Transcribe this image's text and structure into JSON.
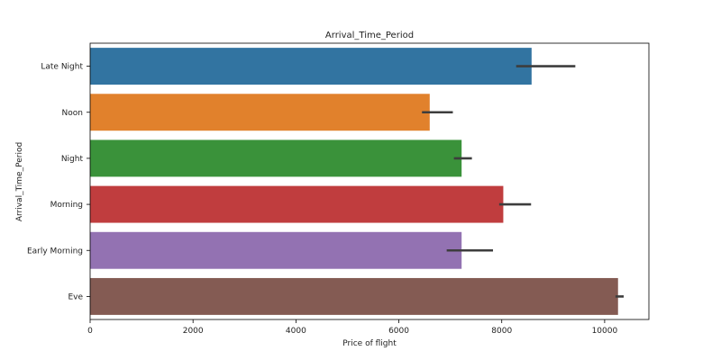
{
  "chart_data": {
    "type": "bar",
    "orientation": "horizontal",
    "title": "Arrival_Time_Period",
    "xlabel": "Price of flight",
    "ylabel": "Arrival_Time_Period",
    "xlim": [
      0,
      10860
    ],
    "xticks": [
      0,
      2000,
      4000,
      6000,
      8000,
      10000
    ],
    "grid": false,
    "legend": "none",
    "categories": [
      "Late Night",
      "Noon",
      "Night",
      "Morning",
      "Early Morning",
      "Eve"
    ],
    "values": [
      8580,
      6600,
      7220,
      8030,
      7220,
      10260
    ],
    "error_low": [
      8280,
      6450,
      7070,
      7950,
      6930,
      10210
    ],
    "error_high": [
      9430,
      7050,
      7420,
      8570,
      7830,
      10370
    ],
    "colors": [
      "#3274a1",
      "#e1812c",
      "#3a923a",
      "#c03d3e",
      "#9372b2",
      "#845b53"
    ],
    "errorbar_color": "#3d3d3d"
  }
}
